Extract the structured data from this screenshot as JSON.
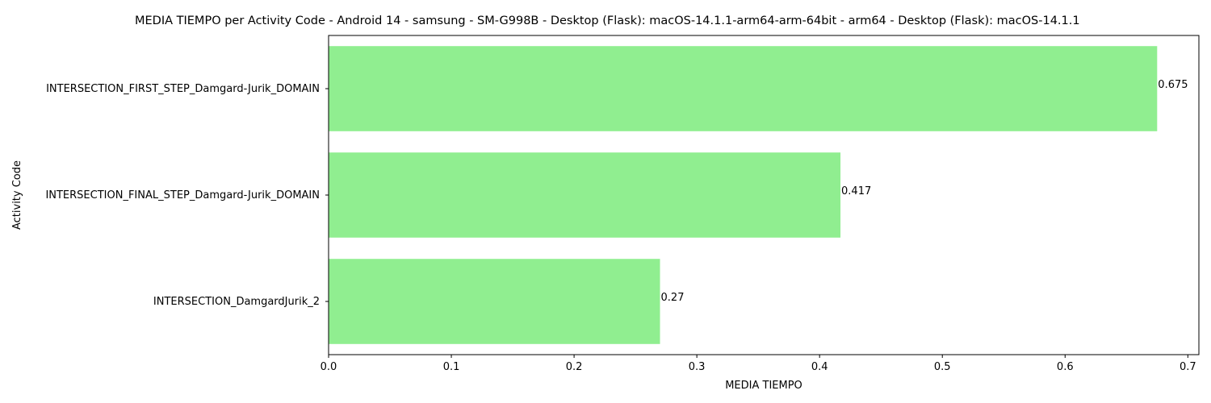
{
  "chart_data": {
    "type": "bar",
    "orientation": "horizontal",
    "title": "MEDIA TIEMPO per Activity Code - Android 14 - samsung - SM-G998B - Desktop (Flask): macOS-14.1.1-arm64-arm-64bit - arm64 - Desktop (Flask): macOS-14.1.1",
    "xlabel": "MEDIA TIEMPO",
    "ylabel": "Activity Code",
    "categories": [
      "INTERSECTION_FIRST_STEP_Damgard-Jurik_DOMAIN",
      "INTERSECTION_FINAL_STEP_Damgard-Jurik_DOMAIN",
      "INTERSECTION_DamgardJurik_2"
    ],
    "values": [
      0.675,
      0.417,
      0.27
    ],
    "value_labels": [
      "0.675",
      "0.417",
      "0.27"
    ],
    "xlim": [
      0,
      0.709
    ],
    "xticks": [
      0,
      0.1,
      0.2,
      0.3,
      0.4,
      0.5,
      0.6,
      0.7
    ],
    "xtick_labels": [
      "0.0",
      "0.1",
      "0.2",
      "0.3",
      "0.4",
      "0.5",
      "0.6",
      "0.7"
    ],
    "grid": false,
    "bar_color": "#90ee90"
  }
}
